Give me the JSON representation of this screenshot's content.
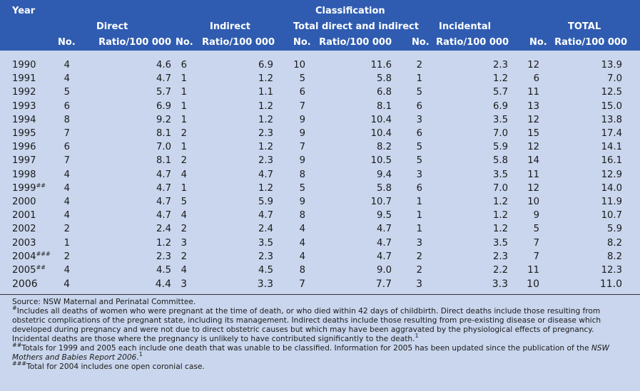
{
  "header": {
    "year": "Year",
    "classification": "Classification",
    "groups": [
      "Direct",
      "Indirect",
      "Total direct and indirect",
      "Incidental",
      "TOTAL"
    ],
    "no_label": "No.",
    "ratio_label": "Ratio/100 000"
  },
  "rows": [
    {
      "year": "1990",
      "sup": "",
      "d_no": "4",
      "d_ratio": "4.6",
      "i_no": "6",
      "i_ratio": "6.9",
      "t_no": "10",
      "t_ratio": "11.6",
      "inc_no": "2",
      "inc_ratio": "2.3",
      "tot_no": "12",
      "tot_ratio": "13.9"
    },
    {
      "year": "1991",
      "sup": "",
      "d_no": "4",
      "d_ratio": "4.7",
      "i_no": "1",
      "i_ratio": "1.2",
      "t_no": "5",
      "t_ratio": "5.8",
      "inc_no": "1",
      "inc_ratio": "1.2",
      "tot_no": "6",
      "tot_ratio": "7.0"
    },
    {
      "year": "1992",
      "sup": "",
      "d_no": "5",
      "d_ratio": "5.7",
      "i_no": "1",
      "i_ratio": "1.1",
      "t_no": "6",
      "t_ratio": "6.8",
      "inc_no": "5",
      "inc_ratio": "5.7",
      "tot_no": "11",
      "tot_ratio": "12.5"
    },
    {
      "year": "1993",
      "sup": "",
      "d_no": "6",
      "d_ratio": "6.9",
      "i_no": "1",
      "i_ratio": "1.2",
      "t_no": "7",
      "t_ratio": "8.1",
      "inc_no": "6",
      "inc_ratio": "6.9",
      "tot_no": "13",
      "tot_ratio": "15.0"
    },
    {
      "year": "1994",
      "sup": "",
      "d_no": "8",
      "d_ratio": "9.2",
      "i_no": "1",
      "i_ratio": "1.2",
      "t_no": "9",
      "t_ratio": "10.4",
      "inc_no": "3",
      "inc_ratio": "3.5",
      "tot_no": "12",
      "tot_ratio": "13.8"
    },
    {
      "year": "1995",
      "sup": "",
      "d_no": "7",
      "d_ratio": "8.1",
      "i_no": "2",
      "i_ratio": "2.3",
      "t_no": "9",
      "t_ratio": "10.4",
      "inc_no": "6",
      "inc_ratio": "7.0",
      "tot_no": "15",
      "tot_ratio": "17.4"
    },
    {
      "year": "1996",
      "sup": "",
      "d_no": "6",
      "d_ratio": "7.0",
      "i_no": "1",
      "i_ratio": "1.2",
      "t_no": "7",
      "t_ratio": "8.2",
      "inc_no": "5",
      "inc_ratio": "5.9",
      "tot_no": "12",
      "tot_ratio": "14.1"
    },
    {
      "year": "1997",
      "sup": "",
      "d_no": "7",
      "d_ratio": "8.1",
      "i_no": "2",
      "i_ratio": "2.3",
      "t_no": "9",
      "t_ratio": "10.5",
      "inc_no": "5",
      "inc_ratio": "5.8",
      "tot_no": "14",
      "tot_ratio": "16.1"
    },
    {
      "year": "1998",
      "sup": "",
      "d_no": "4",
      "d_ratio": "4.7",
      "i_no": "4",
      "i_ratio": "4.7",
      "t_no": "8",
      "t_ratio": "9.4",
      "inc_no": "3",
      "inc_ratio": "3.5",
      "tot_no": "11",
      "tot_ratio": "12.9"
    },
    {
      "year": "1999",
      "sup": "##",
      "d_no": "4",
      "d_ratio": "4.7",
      "i_no": "1",
      "i_ratio": "1.2",
      "t_no": "5",
      "t_ratio": "5.8",
      "inc_no": "6",
      "inc_ratio": "7.0",
      "tot_no": "12",
      "tot_ratio": "14.0"
    },
    {
      "year": "2000",
      "sup": "",
      "d_no": "4",
      "d_ratio": "4.7",
      "i_no": "5",
      "i_ratio": "5.9",
      "t_no": "9",
      "t_ratio": "10.7",
      "inc_no": "1",
      "inc_ratio": "1.2",
      "tot_no": "10",
      "tot_ratio": "11.9"
    },
    {
      "year": "2001",
      "sup": "",
      "d_no": "4",
      "d_ratio": "4.7",
      "i_no": "4",
      "i_ratio": "4.7",
      "t_no": "8",
      "t_ratio": "9.5",
      "inc_no": "1",
      "inc_ratio": "1.2",
      "tot_no": "9",
      "tot_ratio": "10.7"
    },
    {
      "year": "2002",
      "sup": "",
      "d_no": "2",
      "d_ratio": "2.4",
      "i_no": "2",
      "i_ratio": "2.4",
      "t_no": "4",
      "t_ratio": "4.7",
      "inc_no": "1",
      "inc_ratio": "1.2",
      "tot_no": "5",
      "tot_ratio": "5.9"
    },
    {
      "year": "2003",
      "sup": "",
      "d_no": "1",
      "d_ratio": "1.2",
      "i_no": "3",
      "i_ratio": "3.5",
      "t_no": "4",
      "t_ratio": "4.7",
      "inc_no": "3",
      "inc_ratio": "3.5",
      "tot_no": "7",
      "tot_ratio": "8.2"
    },
    {
      "year": "2004",
      "sup": "###",
      "d_no": "2",
      "d_ratio": "2.3",
      "i_no": "2",
      "i_ratio": "2.3",
      "t_no": "4",
      "t_ratio": "4.7",
      "inc_no": "2",
      "inc_ratio": "2.3",
      "tot_no": "7",
      "tot_ratio": "8.2"
    },
    {
      "year": "2005",
      "sup": "##",
      "d_no": "4",
      "d_ratio": "4.5",
      "i_no": "4",
      "i_ratio": "4.5",
      "t_no": "8",
      "t_ratio": "9.0",
      "inc_no": "2",
      "inc_ratio": "2.2",
      "tot_no": "11",
      "tot_ratio": "12.3"
    },
    {
      "year": "2006",
      "sup": "",
      "d_no": "4",
      "d_ratio": "4.4",
      "i_no": "3",
      "i_ratio": "3.3",
      "t_no": "7",
      "t_ratio": "7.7",
      "inc_no": "3",
      "inc_ratio": "3.3",
      "tot_no": "10",
      "tot_ratio": "11.0"
    }
  ],
  "notes": {
    "source": "Source: NSW Maternal and Perinatal Committee.",
    "note1_mark": "#",
    "note1": "Includes all deaths of women who were pregnant at the time of death, or who died within 42 days of childbirth. Direct deaths include those resulting from obstetric complications of the pregnant state, including its management. Indirect deaths include those resulting from pre-existing disease or disease which developed during pregnancy and were not due to direct obstetric causes but which may have been aggravated by the physiological effects of pregnancy. Incidental deaths are those where the pregnancy is unlikely to have contributed significantly to the death.",
    "note1_ref": "1",
    "note2_mark": "##",
    "note2_pre": "Totals for 1999 and 2005 each include one death that was unable to be classified. Information for 2005 has been updated since the publication of the ",
    "note2_italic": "NSW Mothers and Babies Report 2006",
    "note2_post": ".",
    "note2_ref": "1",
    "note3_mark": "###",
    "note3": "Total for 2004 includes one open coronial case."
  }
}
